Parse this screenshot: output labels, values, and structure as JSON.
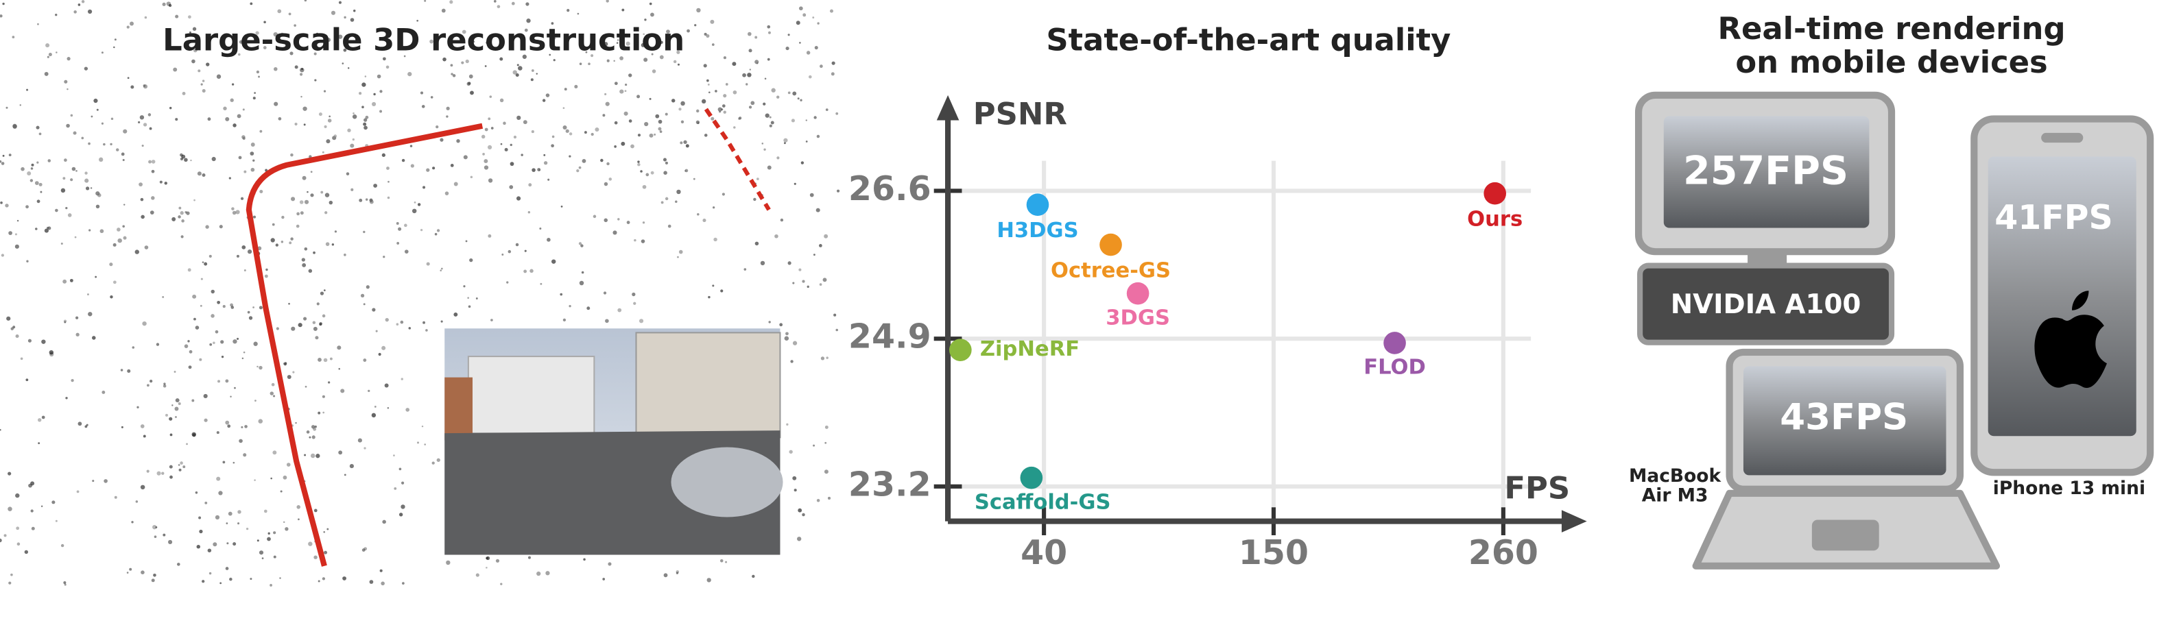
{
  "panels": {
    "left": {
      "title": "Large-scale 3D reconstruction"
    },
    "right": {
      "title_lines": [
        "Real-time rendering",
        "on mobile devices"
      ],
      "desktop": {
        "fps": "257FPS",
        "gpu": "NVIDIA A100"
      },
      "laptop": {
        "fps": "43FPS",
        "name_lines": [
          "MacBook",
          "Air M3"
        ]
      },
      "phone": {
        "fps": "41FPS",
        "name": "iPhone 13 mini"
      }
    }
  },
  "chart_data": {
    "type": "scatter",
    "title": "State-of-the-art quality",
    "x_label": "FPS",
    "y_label": "PSNR",
    "xlim": [
      -6,
      300
    ],
    "ylim": [
      22.8,
      27.7
    ],
    "xticks": [
      40,
      150,
      260
    ],
    "yticks": [
      26.6,
      24.9,
      23.2
    ],
    "grid": true,
    "series": [
      {
        "name": "H3DGS",
        "color": "#2aa7e8",
        "x": [
          37
        ],
        "values": [
          26.44
        ]
      },
      {
        "name": "Octree-GS",
        "color": "#ee9320",
        "x": [
          72
        ],
        "values": [
          25.98
        ]
      },
      {
        "name": "3DGS",
        "color": "#ec6fa4",
        "x": [
          85
        ],
        "values": [
          25.42
        ]
      },
      {
        "name": "ZipNeRF",
        "color": "#8ab83c",
        "x": [
          0
        ],
        "values": [
          24.77
        ]
      },
      {
        "name": "FLOD",
        "color": "#9b59a8",
        "x": [
          208
        ],
        "values": [
          24.85
        ]
      },
      {
        "name": "Ours",
        "color": "#d21f26",
        "x": [
          256
        ],
        "values": [
          26.57
        ]
      },
      {
        "name": "Scaffold-GS",
        "color": "#24988a",
        "x": [
          34
        ],
        "values": [
          23.3
        ]
      }
    ]
  }
}
